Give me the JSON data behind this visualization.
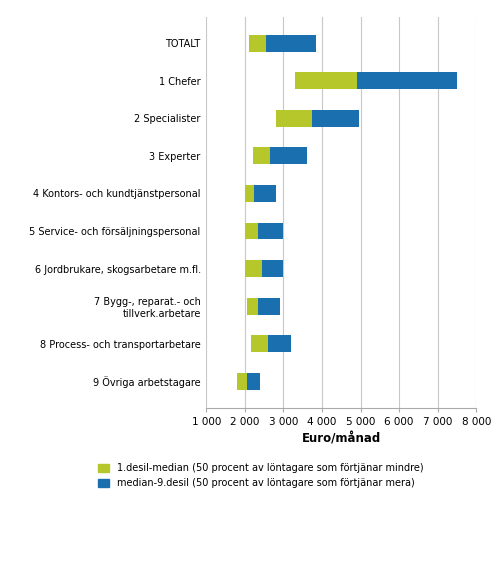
{
  "categories": [
    "TOTALT",
    "1 Chefer",
    "2 Specialister",
    "3 Experter",
    "4 Kontors- och kundtjänstpersonal",
    "5 Service- och försäljningspersonal",
    "6 Jordbrukare, skogsarbetare m.fl.",
    "7 Bygg-, reparat.- och\ntillverk.arbetare",
    "8 Process- och transportarbetare",
    "9 Övriga arbetstagare"
  ],
  "desil1": [
    2100,
    3300,
    2800,
    2200,
    2000,
    2000,
    2000,
    2050,
    2150,
    1800
  ],
  "median": [
    2550,
    4900,
    3750,
    2650,
    2250,
    2350,
    2450,
    2350,
    2600,
    2050
  ],
  "desil9": [
    3850,
    7500,
    4950,
    3600,
    2800,
    3000,
    3000,
    2900,
    3200,
    2400
  ],
  "color_green": "#b5c72a",
  "color_blue": "#1a6faf",
  "xlabel": "Euro/månad",
  "xlim": [
    1000,
    8000
  ],
  "xticks": [
    1000,
    2000,
    3000,
    4000,
    5000,
    6000,
    7000,
    8000
  ],
  "xtick_labels": [
    "1 000",
    "2 000",
    "3 000",
    "4 000",
    "5 000",
    "6 000",
    "7 000",
    "8 000"
  ],
  "legend1": "1.desil-median (50 procent av löntagare som förtjänar mindre)",
  "legend2": "median-9.desil (50 procent av löntagare som förtjänar mera)",
  "background_color": "#ffffff",
  "grid_color": "#c8c8c8",
  "bar_height": 0.45,
  "figwidth": 4.91,
  "figheight": 5.66,
  "dpi": 100
}
